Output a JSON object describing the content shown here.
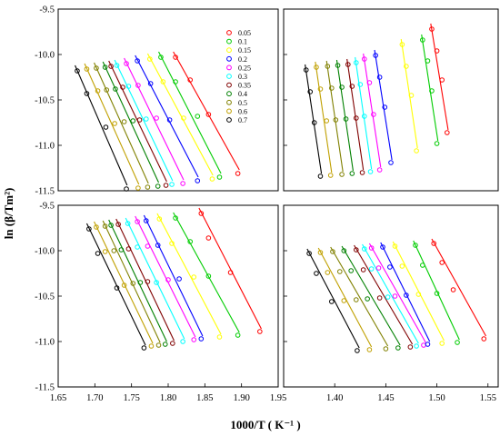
{
  "figure": {
    "xlabel": "1000/T ( K⁻¹ )",
    "ylabel": "ln (β/Tm²)"
  },
  "legend": {
    "entries": [
      "0.05",
      "0.1",
      "0.15",
      "0.2",
      "0.25",
      "0.3",
      "0.35",
      "0.4",
      "0.5",
      "0.6",
      "0.7"
    ],
    "colors": [
      "#ff0000",
      "#00cc00",
      "#ffff00",
      "#0000ff",
      "#ff00ff",
      "#00ffff",
      "#800000",
      "#008000",
      "#808000",
      "#c0a000",
      "#000000"
    ]
  },
  "chart_data": [
    {
      "type": "scatter",
      "panel": "top-left",
      "xlim": [
        1.65,
        1.95
      ],
      "ylim": [
        -11.5,
        -9.5
      ],
      "xticks": [],
      "yticks": [
        "-9.5",
        "-10.0",
        "-10.5",
        "-11.0",
        "-11.5"
      ],
      "series": [
        {
          "name": "0.7",
          "x": [
            1.676,
            1.689,
            1.715,
            1.743
          ],
          "y": [
            -10.18,
            -10.43,
            -10.8,
            -11.48
          ],
          "fit_x": [
            1.673,
            1.744
          ],
          "fit_y": [
            -10.12,
            -11.44
          ]
        },
        {
          "name": "0.6",
          "x": [
            1.689,
            1.704,
            1.727,
            1.759
          ],
          "y": [
            -10.16,
            -10.4,
            -10.76,
            -11.47
          ],
          "fit_x": [
            1.686,
            1.76
          ],
          "fit_y": [
            -10.1,
            -11.43
          ]
        },
        {
          "name": "0.5",
          "x": [
            1.702,
            1.716,
            1.74,
            1.772
          ],
          "y": [
            -10.15,
            -10.39,
            -10.74,
            -11.46
          ],
          "fit_x": [
            1.699,
            1.773
          ],
          "fit_y": [
            -10.09,
            -11.42
          ]
        },
        {
          "name": "0.4",
          "x": [
            1.714,
            1.728,
            1.752,
            1.786
          ],
          "y": [
            -10.14,
            -10.38,
            -10.73,
            -11.45
          ],
          "fit_x": [
            1.711,
            1.787
          ],
          "fit_y": [
            -10.08,
            -11.41
          ]
        },
        {
          "name": "0.35",
          "x": [
            1.722,
            1.738,
            1.761,
            1.797
          ],
          "y": [
            -10.13,
            -10.36,
            -10.72,
            -11.44
          ],
          "fit_x": [
            1.719,
            1.798
          ],
          "fit_y": [
            -10.07,
            -11.4
          ]
        },
        {
          "name": "0.3",
          "x": [
            1.73,
            1.746,
            1.77,
            1.805
          ],
          "y": [
            -10.12,
            -10.35,
            -10.71,
            -11.43
          ],
          "fit_x": [
            1.727,
            1.806
          ],
          "fit_y": [
            -10.06,
            -11.39
          ]
        },
        {
          "name": "0.25",
          "x": [
            1.743,
            1.759,
            1.784,
            1.82
          ],
          "y": [
            -10.1,
            -10.34,
            -10.7,
            -11.42
          ],
          "fit_x": [
            1.74,
            1.821
          ],
          "fit_y": [
            -10.04,
            -11.38
          ]
        },
        {
          "name": "0.2",
          "x": [
            1.758,
            1.776,
            1.802,
            1.84
          ],
          "y": [
            -10.07,
            -10.32,
            -10.72,
            -11.39
          ],
          "fit_x": [
            1.755,
            1.841
          ],
          "fit_y": [
            -10.01,
            -11.35
          ]
        },
        {
          "name": "0.15",
          "x": [
            1.775,
            1.793,
            1.821,
            1.86
          ],
          "y": [
            -10.05,
            -10.3,
            -10.7,
            -11.37
          ],
          "fit_x": [
            1.772,
            1.861
          ],
          "fit_y": [
            -9.99,
            -11.33
          ]
        },
        {
          "name": "0.1",
          "x": [
            1.79,
            1.81,
            1.84,
            1.87
          ],
          "y": [
            -10.03,
            -10.3,
            -10.68,
            -11.35
          ],
          "fit_x": [
            1.787,
            1.872
          ],
          "fit_y": [
            -9.97,
            -11.31
          ]
        },
        {
          "name": "0.05",
          "x": [
            1.81,
            1.83,
            1.855,
            1.895
          ],
          "y": [
            -10.03,
            -10.28,
            -10.66,
            -11.31
          ],
          "fit_x": [
            1.807,
            1.897
          ],
          "fit_y": [
            -9.97,
            -11.27
          ]
        }
      ]
    },
    {
      "type": "scatter",
      "panel": "top-right",
      "xlim": [
        1.35,
        1.56
      ],
      "ylim": [
        -11.5,
        -9.5
      ],
      "xticks": [],
      "yticks": [],
      "series": [
        {
          "name": "0.7",
          "x": [
            1.372,
            1.376,
            1.38,
            1.386
          ],
          "y": [
            -10.17,
            -10.41,
            -10.75,
            -11.34
          ],
          "fit_x": [
            1.371,
            1.387
          ],
          "fit_y": [
            -10.11,
            -11.31
          ]
        },
        {
          "name": "0.6",
          "x": [
            1.382,
            1.386,
            1.392,
            1.396
          ],
          "y": [
            -10.14,
            -10.38,
            -10.73,
            -11.33
          ],
          "fit_x": [
            1.381,
            1.397
          ],
          "fit_y": [
            -10.08,
            -11.3
          ]
        },
        {
          "name": "0.5",
          "x": [
            1.393,
            1.397,
            1.401,
            1.407
          ],
          "y": [
            -10.13,
            -10.37,
            -10.72,
            -11.32
          ],
          "fit_x": [
            1.392,
            1.408
          ],
          "fit_y": [
            -10.07,
            -11.29
          ]
        },
        {
          "name": "0.4",
          "x": [
            1.403,
            1.407,
            1.411,
            1.417
          ],
          "y": [
            -10.12,
            -10.36,
            -10.71,
            -11.31
          ],
          "fit_x": [
            1.402,
            1.418
          ],
          "fit_y": [
            -10.06,
            -11.28
          ]
        },
        {
          "name": "0.35",
          "x": [
            1.413,
            1.417,
            1.421,
            1.427
          ],
          "y": [
            -10.11,
            -10.35,
            -10.7,
            -11.3
          ],
          "fit_x": [
            1.412,
            1.428
          ],
          "fit_y": [
            -10.05,
            -11.27
          ]
        },
        {
          "name": "0.3",
          "x": [
            1.421,
            1.425,
            1.429,
            1.435
          ],
          "y": [
            -10.09,
            -10.33,
            -10.68,
            -11.29
          ],
          "fit_x": [
            1.42,
            1.436
          ],
          "fit_y": [
            -10.03,
            -11.26
          ]
        },
        {
          "name": "0.25",
          "x": [
            1.429,
            1.434,
            1.438,
            1.444
          ],
          "y": [
            -10.05,
            -10.31,
            -10.66,
            -11.27
          ],
          "fit_x": [
            1.428,
            1.445
          ],
          "fit_y": [
            -9.99,
            -11.24
          ]
        },
        {
          "name": "0.2",
          "x": [
            1.44,
            1.444,
            1.449,
            1.455
          ],
          "y": [
            -10.01,
            -10.25,
            -10.58,
            -11.19
          ],
          "fit_x": [
            1.439,
            1.456
          ],
          "fit_y": [
            -9.95,
            -11.16
          ]
        },
        {
          "name": "0.15",
          "x": [
            1.466,
            1.47,
            1.475,
            1.48
          ],
          "y": [
            -9.89,
            -10.13,
            -10.45,
            -11.06
          ],
          "fit_x": [
            1.465,
            1.481
          ],
          "fit_y": [
            -9.83,
            -11.03
          ]
        },
        {
          "name": "0.1",
          "x": [
            1.486,
            1.491,
            1.495,
            1.5
          ],
          "y": [
            -9.84,
            -10.07,
            -10.4,
            -10.98
          ],
          "fit_x": [
            1.485,
            1.501
          ],
          "fit_y": [
            -9.78,
            -10.95
          ]
        },
        {
          "name": "0.05",
          "x": [
            1.495,
            1.5,
            1.505,
            1.51
          ],
          "y": [
            -9.72,
            -9.96,
            -10.28,
            -10.86
          ],
          "fit_x": [
            1.494,
            1.511
          ],
          "fit_y": [
            -9.66,
            -10.83
          ]
        }
      ]
    },
    {
      "type": "scatter",
      "panel": "bottom-left",
      "xlim": [
        1.65,
        1.95
      ],
      "ylim": [
        -11.5,
        -9.5
      ],
      "xticks": [
        "1.65",
        "1.70",
        "1.75",
        "1.80",
        "1.85",
        "1.90",
        "1.95"
      ],
      "yticks": [
        "-9.5",
        "-10.0",
        "-10.5",
        "-11.0",
        "-11.5"
      ],
      "series": [
        {
          "name": "0.7",
          "x": [
            1.692,
            1.704,
            1.73,
            1.767
          ],
          "y": [
            -9.76,
            -10.03,
            -10.41,
            -11.07
          ],
          "fit_x": [
            1.689,
            1.769
          ],
          "fit_y": [
            -9.7,
            -11.04
          ]
        },
        {
          "name": "0.6",
          "x": [
            1.702,
            1.714,
            1.74,
            1.777
          ],
          "y": [
            -9.74,
            -10.01,
            -10.38,
            -11.05
          ],
          "fit_x": [
            1.699,
            1.779
          ],
          "fit_y": [
            -9.68,
            -11.02
          ]
        },
        {
          "name": "0.5",
          "x": [
            1.714,
            1.726,
            1.752,
            1.787
          ],
          "y": [
            -9.73,
            -10.0,
            -10.36,
            -11.04
          ],
          "fit_x": [
            1.711,
            1.789
          ],
          "fit_y": [
            -9.67,
            -11.01
          ]
        },
        {
          "name": "0.4",
          "x": [
            1.722,
            1.736,
            1.762,
            1.796
          ],
          "y": [
            -9.72,
            -9.99,
            -10.35,
            -11.03
          ],
          "fit_x": [
            1.719,
            1.798
          ],
          "fit_y": [
            -9.66,
            -11.0
          ]
        },
        {
          "name": "0.35",
          "x": [
            1.732,
            1.746,
            1.772,
            1.806
          ],
          "y": [
            -9.71,
            -9.98,
            -10.34,
            -11.02
          ],
          "fit_x": [
            1.729,
            1.808
          ],
          "fit_y": [
            -9.65,
            -10.99
          ]
        },
        {
          "name": "0.3",
          "x": [
            1.745,
            1.758,
            1.784,
            1.82
          ],
          "y": [
            -9.7,
            -9.96,
            -10.35,
            -11.0
          ],
          "fit_x": [
            1.742,
            1.822
          ],
          "fit_y": [
            -9.64,
            -10.97
          ]
        },
        {
          "name": "0.25",
          "x": [
            1.758,
            1.772,
            1.8,
            1.835
          ],
          "y": [
            -9.68,
            -9.95,
            -10.32,
            -10.98
          ],
          "fit_x": [
            1.755,
            1.837
          ],
          "fit_y": [
            -9.62,
            -10.95
          ]
        },
        {
          "name": "0.2",
          "x": [
            1.77,
            1.786,
            1.815,
            1.845
          ],
          "y": [
            -9.67,
            -9.94,
            -10.31,
            -10.97
          ],
          "fit_x": [
            1.767,
            1.847
          ],
          "fit_y": [
            -9.61,
            -10.94
          ]
        },
        {
          "name": "0.15",
          "x": [
            1.788,
            1.805,
            1.835,
            1.87
          ],
          "y": [
            -9.65,
            -9.92,
            -10.29,
            -10.95
          ],
          "fit_x": [
            1.785,
            1.872
          ],
          "fit_y": [
            -9.59,
            -10.92
          ]
        },
        {
          "name": "0.1",
          "x": [
            1.81,
            1.83,
            1.855,
            1.895
          ],
          "y": [
            -9.64,
            -9.9,
            -10.28,
            -10.93
          ],
          "fit_x": [
            1.807,
            1.897
          ],
          "fit_y": [
            -9.58,
            -10.9
          ]
        },
        {
          "name": "0.05",
          "x": [
            1.845,
            1.855,
            1.885,
            1.925
          ],
          "y": [
            -9.59,
            -9.86,
            -10.24,
            -10.89
          ],
          "fit_x": [
            1.842,
            1.927
          ],
          "fit_y": [
            -9.53,
            -10.86
          ]
        }
      ]
    },
    {
      "type": "scatter",
      "panel": "bottom-right",
      "xlim": [
        1.35,
        1.56
      ],
      "ylim": [
        -11.5,
        -9.5
      ],
      "xticks": [
        "1.40",
        "1.45",
        "1.50",
        "1.55"
      ],
      "yticks": [],
      "series": [
        {
          "name": "0.7",
          "x": [
            1.375,
            1.382,
            1.397,
            1.422
          ],
          "y": [
            -10.03,
            -10.25,
            -10.56,
            -11.1
          ],
          "fit_x": [
            1.373,
            1.424
          ],
          "fit_y": [
            -9.98,
            -11.07
          ]
        },
        {
          "name": "0.6",
          "x": [
            1.386,
            1.393,
            1.409,
            1.434
          ],
          "y": [
            -10.02,
            -10.24,
            -10.55,
            -11.09
          ],
          "fit_x": [
            1.384,
            1.436
          ],
          "fit_y": [
            -9.97,
            -11.06
          ]
        },
        {
          "name": "0.5",
          "x": [
            1.398,
            1.405,
            1.421,
            1.45
          ],
          "y": [
            -10.01,
            -10.23,
            -10.54,
            -11.08
          ],
          "fit_x": [
            1.396,
            1.452
          ],
          "fit_y": [
            -9.96,
            -11.05
          ]
        },
        {
          "name": "0.4",
          "x": [
            1.409,
            1.416,
            1.432,
            1.462
          ],
          "y": [
            -10.0,
            -10.22,
            -10.53,
            -11.07
          ],
          "fit_x": [
            1.407,
            1.464
          ],
          "fit_y": [
            -9.95,
            -11.04
          ]
        },
        {
          "name": "0.35",
          "x": [
            1.421,
            1.428,
            1.444,
            1.474
          ],
          "y": [
            -9.99,
            -10.21,
            -10.52,
            -11.06
          ],
          "fit_x": [
            1.419,
            1.476
          ],
          "fit_y": [
            -9.94,
            -11.03
          ]
        },
        {
          "name": "0.3",
          "x": [
            1.429,
            1.436,
            1.452,
            1.48
          ],
          "y": [
            -9.98,
            -10.2,
            -10.51,
            -11.05
          ],
          "fit_x": [
            1.427,
            1.482
          ],
          "fit_y": [
            -9.93,
            -11.02
          ]
        },
        {
          "name": "0.25",
          "x": [
            1.436,
            1.443,
            1.459,
            1.487
          ],
          "y": [
            -9.97,
            -10.19,
            -10.5,
            -11.04
          ],
          "fit_x": [
            1.434,
            1.489
          ],
          "fit_y": [
            -9.92,
            -11.01
          ]
        },
        {
          "name": "0.2",
          "x": [
            1.447,
            1.454,
            1.47,
            1.491
          ],
          "y": [
            -9.96,
            -10.18,
            -10.49,
            -11.03
          ],
          "fit_x": [
            1.445,
            1.493
          ],
          "fit_y": [
            -9.91,
            -11.0
          ]
        },
        {
          "name": "0.15",
          "x": [
            1.459,
            1.466,
            1.482,
            1.505
          ],
          "y": [
            -9.95,
            -10.17,
            -10.48,
            -11.02
          ],
          "fit_x": [
            1.457,
            1.507
          ],
          "fit_y": [
            -9.9,
            -10.99
          ]
        },
        {
          "name": "0.1",
          "x": [
            1.479,
            1.486,
            1.5,
            1.52
          ],
          "y": [
            -9.94,
            -10.16,
            -10.47,
            -11.01
          ],
          "fit_x": [
            1.477,
            1.522
          ],
          "fit_y": [
            -9.89,
            -10.98
          ]
        },
        {
          "name": "0.05",
          "x": [
            1.497,
            1.505,
            1.516,
            1.546
          ],
          "y": [
            -9.92,
            -10.13,
            -10.43,
            -10.97
          ],
          "fit_x": [
            1.495,
            1.548
          ],
          "fit_y": [
            -9.87,
            -10.94
          ]
        }
      ]
    }
  ]
}
